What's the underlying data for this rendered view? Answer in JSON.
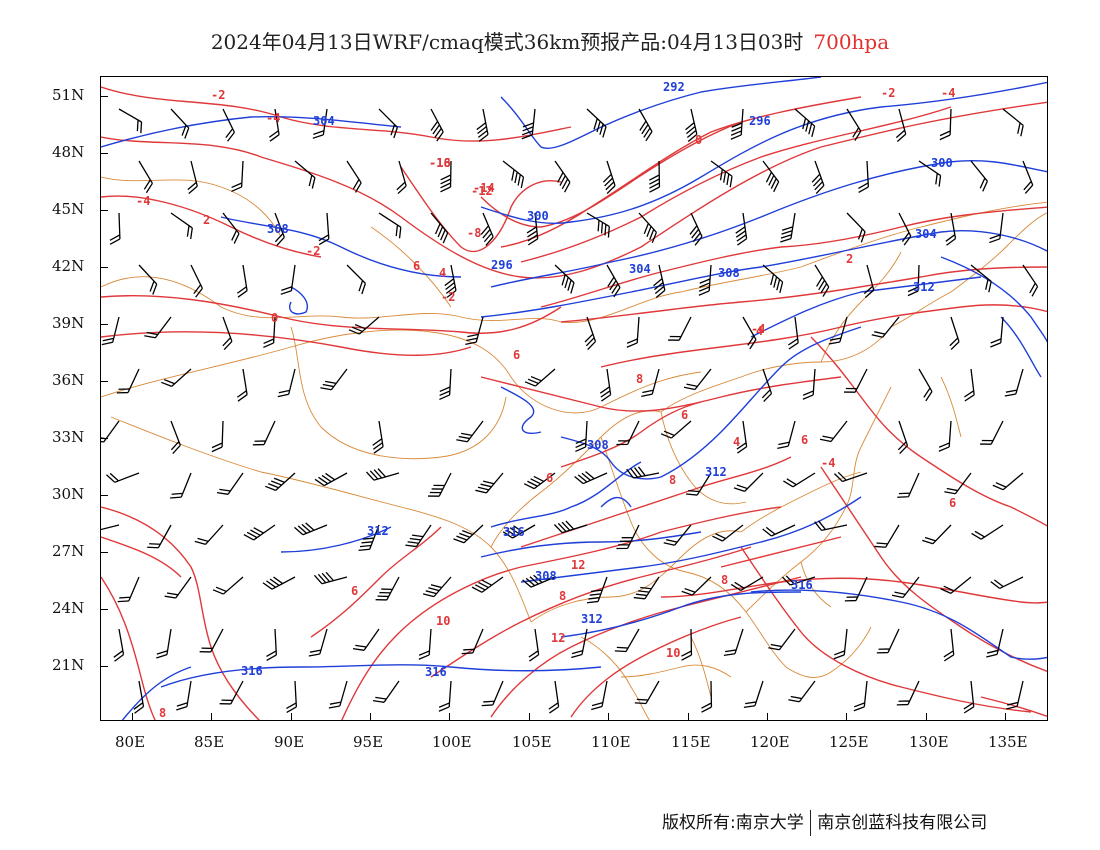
{
  "title": {
    "main": "2024年04月13日WRF/cmaq模式36km预报产品:04月13日03时",
    "level": "700hpa"
  },
  "colors": {
    "temperature": "#e0383a",
    "height": "#1f3fd8",
    "boundary": "#d98a3a",
    "wind": "#000000"
  },
  "axes": {
    "y_ticks": [
      "51N",
      "48N",
      "45N",
      "42N",
      "39N",
      "36N",
      "33N",
      "30N",
      "27N",
      "24N",
      "21N"
    ],
    "x_ticks": [
      "80E",
      "85E",
      "90E",
      "95E",
      "100E",
      "105E",
      "110E",
      "115E",
      "120E",
      "125E",
      "130E",
      "135E"
    ]
  },
  "contour_labels": {
    "temperature": [
      "-2",
      "-4",
      "-4",
      "-2",
      "-4",
      "2",
      "-2",
      "-18",
      "-16",
      "-14",
      "-12",
      "-8",
      "0",
      "6",
      "4",
      "-2",
      "0",
      "2",
      "-4",
      "4",
      "6",
      "8",
      "6",
      "8",
      "6",
      "4",
      "-4",
      "6",
      "8",
      "10",
      "12",
      "10",
      "12",
      "8",
      "6",
      "6",
      "8"
    ],
    "height": [
      "292",
      "296",
      "300",
      "304",
      "304",
      "308",
      "296",
      "300",
      "304",
      "308",
      "312",
      "308",
      "312",
      "316",
      "312",
      "308",
      "316",
      "312",
      "316",
      "316"
    ]
  },
  "footer": {
    "left": "版权所有:南京大学",
    "right": "南京创蓝科技有限公司"
  }
}
